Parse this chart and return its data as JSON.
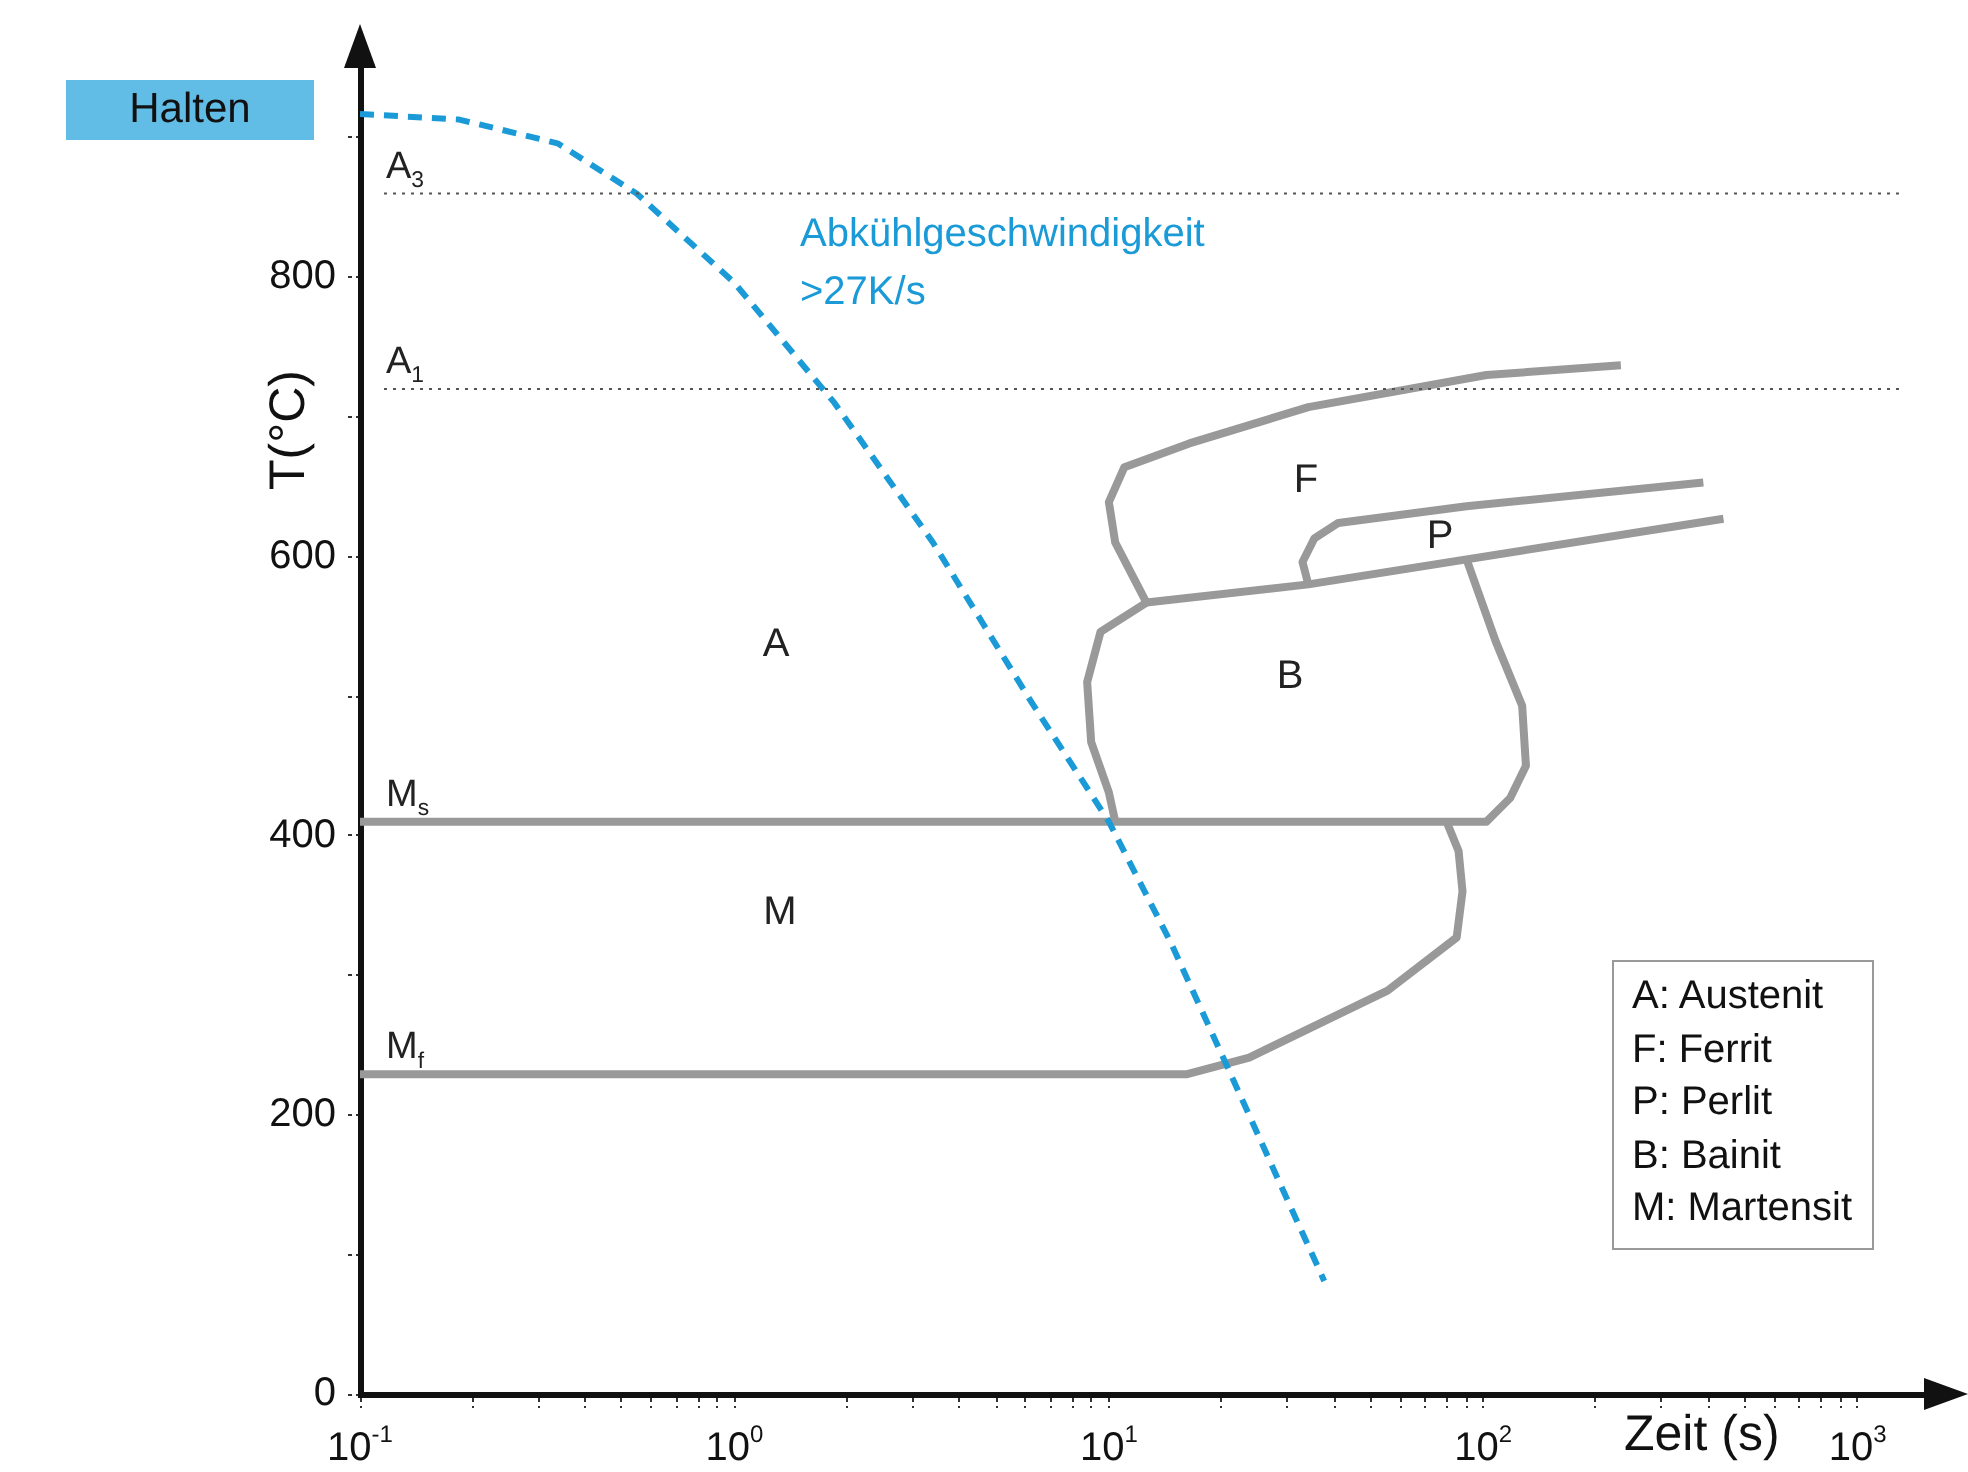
{
  "chart_data": {
    "type": "line",
    "xlabel": "Zeit (s)",
    "ylabel": "T(°C)",
    "log": "x",
    "grid": false,
    "legend": false,
    "marker": "none",
    "xlim": [
      0.1,
      1700
    ],
    "ylim": [
      0,
      970
    ],
    "xticks": [
      {
        "value": 0.1,
        "label": "10$^{-1}$"
      },
      {
        "value": 0.2,
        "label": null
      },
      {
        "value": 0.3,
        "label": null
      },
      {
        "value": 0.4,
        "label": null
      },
      {
        "value": 0.5,
        "label": null
      },
      {
        "value": 0.6,
        "label": null
      },
      {
        "value": 0.7,
        "label": null
      },
      {
        "value": 0.8,
        "label": null
      },
      {
        "value": 0.9,
        "label": null
      },
      {
        "value": 1,
        "label": "10$^{0}$"
      },
      {
        "value": 2,
        "label": null
      },
      {
        "value": 3,
        "label": null
      },
      {
        "value": 4,
        "label": null
      },
      {
        "value": 5,
        "label": null
      },
      {
        "value": 6,
        "label": null
      },
      {
        "value": 7,
        "label": null
      },
      {
        "value": 8,
        "label": null
      },
      {
        "value": 9,
        "label": null
      },
      {
        "value": 10,
        "label": "10$^{1}$"
      },
      {
        "value": 20,
        "label": null
      },
      {
        "value": 30,
        "label": null
      },
      {
        "value": 40,
        "label": null
      },
      {
        "value": 50,
        "label": null
      },
      {
        "value": 60,
        "label": null
      },
      {
        "value": 70,
        "label": null
      },
      {
        "value": 80,
        "label": null
      },
      {
        "value": 90,
        "label": null
      },
      {
        "value": 100,
        "label": "10$^{2}$"
      },
      {
        "value": 200,
        "label": null
      },
      {
        "value": 300,
        "label": null
      },
      {
        "value": 400,
        "label": null
      },
      {
        "value": 500,
        "label": null
      },
      {
        "value": 600,
        "label": null
      },
      {
        "value": 700,
        "label": null
      },
      {
        "value": 800,
        "label": null
      },
      {
        "value": 900,
        "label": null
      },
      {
        "value": 1000,
        "label": "10$^{3}$"
      }
    ],
    "yticks": [
      0,
      {
        "value": 100,
        "label": null
      },
      200,
      {
        "value": 300,
        "label": null
      },
      400,
      {
        "value": 500,
        "label": null
      },
      600,
      {
        "value": 700,
        "label": null
      },
      800,
      {
        "value": 900,
        "label": null
      }
    ],
    "ref_lines": [
      {
        "axis": "y",
        "value": 860,
        "label": "A$_{3}$",
        "color": "#555555",
        "line_style": "dotted"
      },
      {
        "axis": "y",
        "value": 720,
        "label": "A$_{1}$",
        "color": "#555555",
        "line_style": "dotted"
      }
    ],
    "series": [
      {
        "color": "#1a9ad6",
        "line_style": "dashed",
        "x": [
          0.1,
          0.184,
          0.337,
          0.548,
          1.0,
          1.85,
          3.39,
          6.2,
          10,
          14.6,
          21,
          28.4,
          37.6
        ],
        "values": [
          917,
          913,
          896,
          860,
          796,
          710,
          610,
          496,
          410,
          324,
          231,
          153,
          81
        ]
      },
      {
        "color": "#999999",
        "line_style": "solid",
        "x": [
          233,
          102,
          34.1,
          16.4,
          11,
          10,
          10.4,
          12.6,
          34.1,
          438
        ],
        "values": [
          737,
          730,
          707,
          681,
          664,
          639,
          610,
          567,
          580,
          627
        ]
      },
      {
        "color": "#999999",
        "line_style": "solid",
        "x": [
          34.1,
          32.9,
          35.4,
          41,
          90.2,
          387
        ],
        "values": [
          580,
          596,
          613,
          624,
          636,
          653
        ]
      },
      {
        "color": "#999999",
        "line_style": "solid",
        "x": [
          12.6,
          9.5,
          8.75,
          8.97,
          10,
          10.4
        ],
        "values": [
          567,
          546,
          510,
          467,
          431,
          410
        ]
      },
      {
        "name": "M$_{s}$",
        "color": "#999999",
        "line_style": "solid",
        "x": [
          0.1,
          102,
          118,
          130,
          127,
          108,
          90.2
        ],
        "values": [
          410,
          410,
          427,
          450,
          493,
          539,
          598
        ]
      },
      {
        "name": "M$_{f}$",
        "color": "#999999",
        "line_style": "solid",
        "x": [
          0.1,
          16.1,
          23.7,
          55.5,
          84.9,
          88,
          85.9,
          79.8
        ],
        "values": [
          229,
          229,
          241,
          289,
          327,
          360,
          389,
          410
        ]
      }
    ],
    "annotations": [
      "Halten",
      "Abkühlgeschwindigkeit",
      ">27K/s",
      "A",
      "M",
      "F",
      "P",
      "B",
      "A: Austenit",
      "F: Ferrit",
      "P: Perlit",
      "B: Bainit",
      "M: Martensit"
    ]
  }
}
